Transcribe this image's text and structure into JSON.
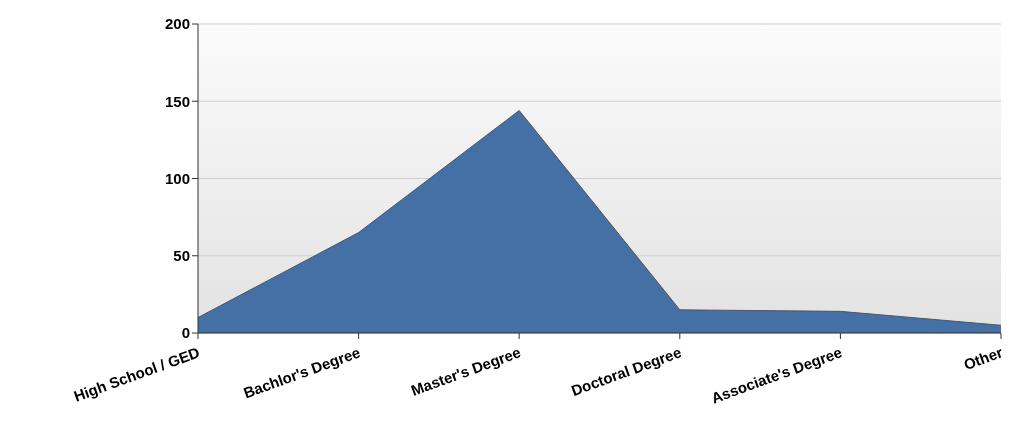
{
  "chart_data": {
    "type": "area",
    "categories": [
      "High School / GED",
      "Bachlor's Degree",
      "Master's Degree",
      "Doctoral Degree",
      "Associate's Degree",
      "Other"
    ],
    "values": [
      10,
      65,
      144,
      15,
      14,
      5
    ],
    "color": "#4470a5",
    "ylim": [
      0,
      200
    ],
    "yticks": [
      0,
      50,
      100,
      150,
      200
    ],
    "grid": "y"
  }
}
